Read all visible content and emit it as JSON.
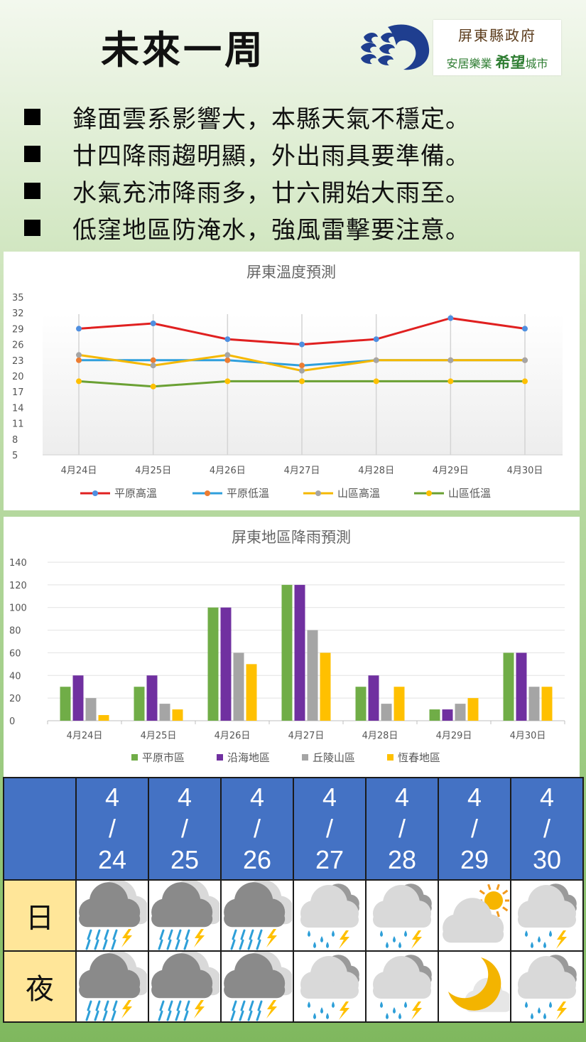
{
  "header": {
    "title": "未來一周",
    "gov_logo_line1": "屏東縣政府",
    "gov_logo_line2_a": "安居樂業",
    "gov_logo_line2_b": "希望",
    "gov_logo_line2_c": "城市"
  },
  "bullets": [
    "鋒面雲系影響大，本縣天氣不穩定。",
    "廿四降雨趨明顯，外出雨具要準備。",
    "水氣充沛降雨多，廿六開始大雨至。",
    "低窪地區防淹水，強風雷擊要注意。"
  ],
  "colors": {
    "plain_high": "#e02020",
    "plain_low": "#2f9fdc",
    "mountain_high": "#f5b800",
    "mountain_low": "#6aa033",
    "rain_plain": "#70ad47",
    "rain_coast": "#7030a0",
    "rain_hill": "#a5a5a5",
    "rain_hengchun": "#ffc000",
    "table_header": "#4472c4",
    "row_label": "#ffe699"
  },
  "chart_data": [
    {
      "type": "line",
      "title": "屏東溫度預測",
      "categories": [
        "4月24日",
        "4月25日",
        "4月26日",
        "4月27日",
        "4月28日",
        "4月29日",
        "4月30日"
      ],
      "ylim": [
        5,
        35
      ],
      "yticks": [
        5,
        8,
        11,
        14,
        17,
        20,
        23,
        26,
        29,
        32,
        35
      ],
      "grid": false,
      "legend": "bottom",
      "series": [
        {
          "name": "平原高溫",
          "line_color": "#e02020",
          "marker_color": "#4f8fe0",
          "values": [
            29,
            30,
            27,
            26,
            27,
            31,
            29
          ]
        },
        {
          "name": "平原低溫",
          "line_color": "#2f9fdc",
          "marker_color": "#ed7d31",
          "values": [
            23,
            23,
            23,
            22,
            23,
            23,
            23
          ]
        },
        {
          "name": "山區高溫",
          "line_color": "#f5b800",
          "marker_color": "#a5a5a5",
          "values": [
            24,
            22,
            24,
            21,
            23,
            23,
            23
          ]
        },
        {
          "name": "山區低溫",
          "line_color": "#6aa033",
          "marker_color": "#ffc000",
          "values": [
            19,
            18,
            19,
            19,
            19,
            19,
            19
          ]
        }
      ]
    },
    {
      "type": "bar",
      "title": "屏東地區降雨預測",
      "categories": [
        "4月24日",
        "4月25日",
        "4月26日",
        "4月27日",
        "4月28日",
        "4月29日",
        "4月30日"
      ],
      "ylim": [
        0,
        140
      ],
      "yticks": [
        0,
        20,
        40,
        60,
        80,
        100,
        120,
        140
      ],
      "grid": true,
      "legend": "bottom",
      "series": [
        {
          "name": "平原市區",
          "color": "#70ad47",
          "values": [
            30,
            30,
            100,
            120,
            30,
            10,
            60
          ]
        },
        {
          "name": "沿海地區",
          "color": "#7030a0",
          "values": [
            40,
            40,
            100,
            120,
            40,
            10,
            60
          ]
        },
        {
          "name": "丘陵山區",
          "color": "#a5a5a5",
          "values": [
            20,
            15,
            60,
            80,
            15,
            15,
            30
          ]
        },
        {
          "name": "恆春地區",
          "color": "#ffc000",
          "values": [
            5,
            10,
            50,
            60,
            30,
            20,
            30
          ]
        }
      ]
    }
  ],
  "forecast": {
    "dates": [
      {
        "m": "4",
        "sep": "/",
        "d": "24"
      },
      {
        "m": "4",
        "sep": "/",
        "d": "25"
      },
      {
        "m": "4",
        "sep": "/",
        "d": "26"
      },
      {
        "m": "4",
        "sep": "/",
        "d": "27"
      },
      {
        "m": "4",
        "sep": "/",
        "d": "28"
      },
      {
        "m": "4",
        "sep": "/",
        "d": "29"
      },
      {
        "m": "4",
        "sep": "/",
        "d": "30"
      }
    ],
    "day_label": "日",
    "night_label": "夜",
    "day_icons": [
      "heavy-rain-thunder-icon",
      "heavy-rain-thunder-icon",
      "heavy-rain-thunder-icon",
      "rain-thunder-icon",
      "rain-thunder-icon",
      "cloudy-sun-icon",
      "rain-thunder-icon"
    ],
    "night_icons": [
      "heavy-rain-thunder-icon",
      "heavy-rain-thunder-icon",
      "heavy-rain-thunder-icon",
      "rain-thunder-icon",
      "rain-thunder-icon",
      "moon-cloud-icon",
      "rain-thunder-icon"
    ]
  }
}
